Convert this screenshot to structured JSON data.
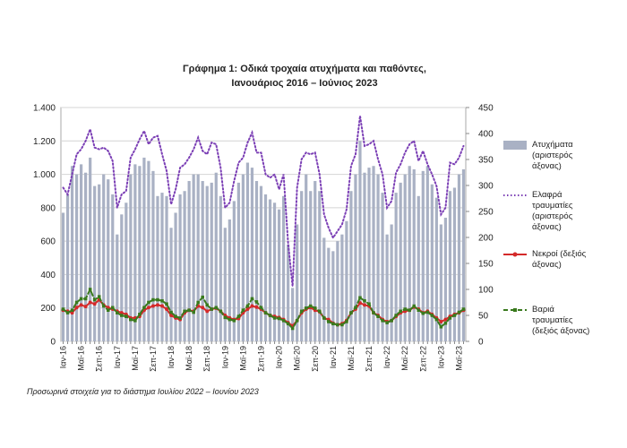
{
  "chart_data": {
    "type": "bar-line",
    "title": "Γράφημα 1: Οδικά τροχαία ατυχήματα και παθόντες,",
    "subtitle": "Ιανουάριος 2016 – Ιούνιος 2023",
    "note": "Προσωρινά στοιχεία για το διάστημα Ιουλίου 2022 – Ιουνίου 2023",
    "categories": [
      "Ιαν-16",
      null,
      null,
      null,
      "Μαϊ-16",
      null,
      null,
      null,
      "Σεπ-16",
      null,
      null,
      null,
      "Ιαν-17",
      null,
      null,
      null,
      "Μαϊ-17",
      null,
      null,
      null,
      "Σεπ-17",
      null,
      null,
      null,
      "Ιαν-18",
      null,
      null,
      null,
      "Μαϊ-18",
      null,
      null,
      null,
      "Σεπ-18",
      null,
      null,
      null,
      "Ιαν-19",
      null,
      null,
      null,
      "Μαϊ-19",
      null,
      null,
      null,
      "Σεπ-19",
      null,
      null,
      null,
      "Ιαν-20",
      null,
      null,
      null,
      "Μαϊ-20",
      null,
      null,
      null,
      "Σεπ-20",
      null,
      null,
      null,
      "Ιαν-21",
      null,
      null,
      null,
      "Μαϊ-21",
      null,
      null,
      null,
      "Σεπ-21",
      null,
      null,
      null,
      "Ιαν-22",
      null,
      null,
      null,
      "Μαϊ-22",
      null,
      null,
      null,
      "Σεπ-22",
      null,
      null,
      null,
      "Ιαν-23",
      null,
      null,
      null,
      "Μαϊ-23",
      null
    ],
    "ylim": [
      0,
      1400
    ],
    "yticks": [
      0,
      200,
      400,
      600,
      800,
      {
        "value": 1000,
        "label": "1.000"
      },
      {
        "value": 1200,
        "label": "1.200"
      },
      {
        "value": 1400,
        "label": "1.400"
      }
    ],
    "y2lim": [
      0,
      450
    ],
    "y2ticks": [
      0,
      50,
      100,
      150,
      200,
      250,
      300,
      350,
      400,
      450
    ],
    "grid": true,
    "series": [
      {
        "name": "Ατυχήματα (αριστερός άξονας)",
        "kind": "bar",
        "color": "#a9b1c4",
        "values": [
          770,
          880,
          1050,
          1000,
          1060,
          1010,
          1100,
          930,
          940,
          1000,
          970,
          880,
          640,
          760,
          830,
          1000,
          1060,
          1050,
          1100,
          1080,
          1020,
          870,
          890,
          870,
          680,
          770,
          880,
          900,
          960,
          1000,
          1000,
          960,
          930,
          950,
          1010,
          870,
          680,
          730,
          840,
          950,
          1000,
          1070,
          1040,
          960,
          930,
          880,
          850,
          830,
          790,
          870,
          580,
          320,
          700,
          900,
          1000,
          900,
          960,
          900,
          620,
          560,
          540,
          600,
          640,
          720,
          900,
          1000,
          1200,
          1010,
          1040,
          1050,
          1000,
          890,
          640,
          700,
          890,
          950,
          1000,
          1050,
          1030,
          870,
          1020,
          1050,
          940,
          860,
          700,
          740,
          900,
          920,
          1000,
          1030
        ]
      },
      {
        "name": "Ελαφρά τραυματίες (αριστερός άξονας)",
        "kind": "line",
        "line_style": "dotted",
        "color": "#7b3fb5",
        "values": [
          920,
          880,
          1000,
          1120,
          1150,
          1200,
          1270,
          1160,
          1150,
          1160,
          1140,
          1080,
          800,
          880,
          900,
          1100,
          1150,
          1210,
          1260,
          1180,
          1220,
          1230,
          1120,
          1020,
          820,
          910,
          1040,
          1060,
          1100,
          1150,
          1220,
          1140,
          1120,
          1190,
          1180,
          1040,
          800,
          830,
          960,
          1070,
          1100,
          1190,
          1250,
          1130,
          1130,
          1000,
          980,
          1000,
          910,
          1000,
          590,
          330,
          920,
          1090,
          1130,
          1120,
          1130,
          1000,
          760,
          680,
          620,
          660,
          700,
          790,
          1050,
          1120,
          1350,
          1170,
          1180,
          1200,
          1090,
          1000,
          800,
          840,
          1010,
          1060,
          1130,
          1180,
          1200,
          1080,
          1140,
          1060,
          1000,
          930,
          760,
          800,
          1070,
          1060,
          1100,
          1170
        ]
      },
      {
        "name": "Νεκροί (δεξιός άξονας)",
        "kind": "line",
        "line_style": "solid",
        "marker": "circle",
        "axis": "y2",
        "color": "#d42a2a",
        "values": [
          60,
          58,
          55,
          65,
          70,
          67,
          75,
          72,
          80,
          70,
          65,
          62,
          58,
          55,
          52,
          45,
          45,
          48,
          60,
          65,
          68,
          70,
          68,
          62,
          50,
          45,
          42,
          55,
          60,
          58,
          68,
          65,
          58,
          62,
          64,
          58,
          50,
          45,
          42,
          44,
          55,
          62,
          68,
          66,
          62,
          55,
          50,
          48,
          46,
          42,
          36,
          30,
          40,
          55,
          62,
          65,
          60,
          57,
          45,
          42,
          35,
          32,
          34,
          40,
          55,
          62,
          74,
          70,
          68,
          55,
          50,
          42,
          38,
          40,
          48,
          55,
          58,
          60,
          66,
          62,
          55,
          58,
          52,
          45,
          38,
          42,
          48,
          52,
          55,
          60
        ]
      },
      {
        "name": "Βαριά τραυματίες (δεξιός άξονας)",
        "kind": "line",
        "line_style": "dashed",
        "marker": "square",
        "axis": "y2",
        "color": "#3a7a1e",
        "values": [
          62,
          55,
          60,
          75,
          82,
          82,
          100,
          80,
          86,
          68,
          60,
          65,
          55,
          50,
          48,
          42,
          40,
          52,
          65,
          75,
          80,
          80,
          78,
          72,
          56,
          48,
          45,
          58,
          60,
          56,
          75,
          85,
          70,
          62,
          65,
          58,
          46,
          42,
          40,
          48,
          60,
          68,
          82,
          76,
          65,
          55,
          50,
          45,
          44,
          40,
          34,
          25,
          40,
          58,
          64,
          68,
          64,
          58,
          45,
          38,
          34,
          32,
          32,
          38,
          55,
          65,
          84,
          78,
          72,
          55,
          48,
          40,
          36,
          40,
          50,
          58,
          62,
          60,
          68,
          60,
          54,
          56,
          50,
          42,
          28,
          35,
          45,
          50,
          56,
          62
        ]
      }
    ]
  }
}
